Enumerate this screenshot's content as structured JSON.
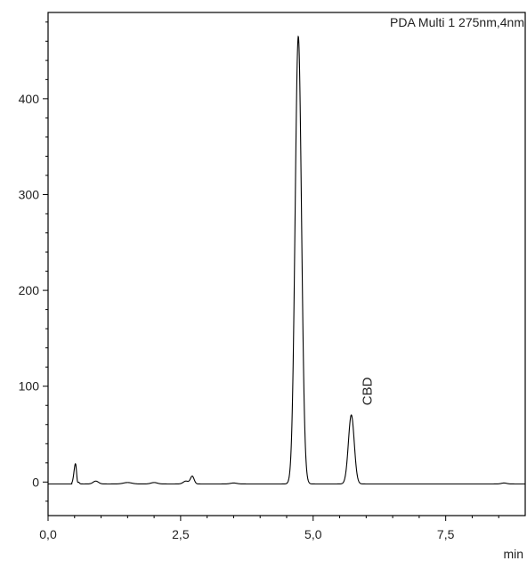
{
  "chart_data": {
    "type": "line",
    "legend": "PDA Multi 1 275nm,4nm",
    "xlabel": "min",
    "ylabel": "",
    "xlim": [
      0,
      9
    ],
    "ylim": [
      -35,
      490
    ],
    "x_ticks": [
      0,
      2.5,
      5,
      7.5
    ],
    "x_tick_labels": [
      "0,0",
      "2,5",
      "5,0",
      "7,5"
    ],
    "y_ticks": [
      0,
      100,
      200,
      300,
      400
    ],
    "y_tick_labels": [
      "0",
      "100",
      "200",
      "300",
      "400"
    ],
    "grid": false,
    "baseline": -2,
    "peaks": [
      {
        "rt": 0.52,
        "height": 22,
        "width": 0.03
      },
      {
        "rt": 0.55,
        "height": -9,
        "width": 0.015
      },
      {
        "rt": 0.9,
        "height": 3,
        "width": 0.05
      },
      {
        "rt": 1.5,
        "height": 1.5,
        "width": 0.08
      },
      {
        "rt": 2.0,
        "height": 1.5,
        "width": 0.06
      },
      {
        "rt": 2.6,
        "height": 3,
        "width": 0.05
      },
      {
        "rt": 2.72,
        "height": 8,
        "width": 0.035
      },
      {
        "rt": 3.5,
        "height": 1,
        "width": 0.06
      },
      {
        "rt": 4.72,
        "height": 467,
        "width": 0.06
      },
      {
        "rt": 5.72,
        "height": 72,
        "width": 0.055
      },
      {
        "rt": 8.6,
        "height": 1,
        "width": 0.05
      }
    ],
    "annotations": [
      {
        "text": "CBD",
        "x": 5.72,
        "y": 80
      }
    ],
    "colors": {
      "line": "#000000",
      "axis": "#000000",
      "text": "#222222"
    }
  }
}
